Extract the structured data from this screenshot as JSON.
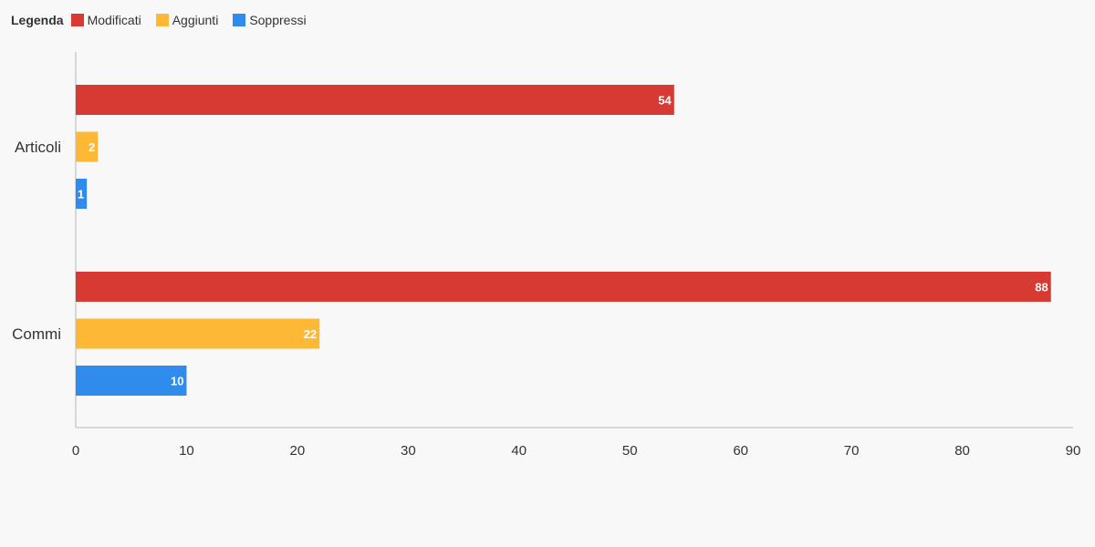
{
  "legend": {
    "title": "Legenda"
  },
  "chart_data": {
    "type": "bar",
    "orientation": "horizontal",
    "categories": [
      "Articoli",
      "Commi"
    ],
    "series": [
      {
        "name": "Modificati",
        "values": [
          54,
          88
        ],
        "color": "#d63a33"
      },
      {
        "name": "Aggiunti",
        "values": [
          2,
          22
        ],
        "color": "#fdb836"
      },
      {
        "name": "Soppressi",
        "values": [
          1,
          10
        ],
        "color": "#2f8bec"
      }
    ],
    "xlim": [
      0,
      90
    ],
    "xticks": [
      0,
      10,
      20,
      30,
      40,
      50,
      60,
      70,
      80,
      90
    ],
    "data_labels": true,
    "grid": false,
    "legend_position": "top-left",
    "title": "",
    "xlabel": "",
    "ylabel": ""
  }
}
